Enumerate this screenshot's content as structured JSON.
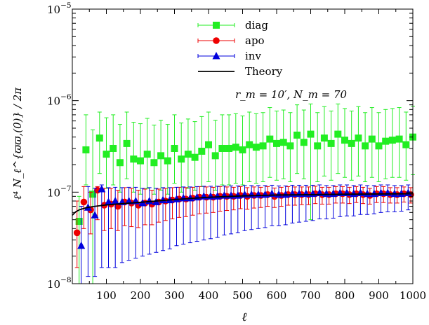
{
  "chart_data": {
    "type": "scatter",
    "title": "",
    "xlabel": "ℓ",
    "ylabel": "ℓ⁴ N_ℓ^{ϖϖ,(0)} / 2π",
    "xlim": [
      0,
      1000
    ],
    "ylim": [
      1e-08,
      1e-05
    ],
    "y_scale": "log",
    "grid": false,
    "legend_position": "top-center",
    "x_ticks": [
      100,
      200,
      300,
      400,
      500,
      600,
      700,
      800,
      900,
      1000
    ],
    "x_tick_labels": [
      "100",
      "200",
      "300",
      "400",
      "500",
      "600",
      "700",
      "800",
      "900",
      "1000"
    ],
    "y_ticks": [
      {
        "value": 1e-08,
        "base": "10",
        "exp": "−8"
      },
      {
        "value": 1e-07,
        "base": "10",
        "exp": "−7"
      },
      {
        "value": 1e-06,
        "base": "10",
        "exp": "−6"
      },
      {
        "value": 1e-05,
        "base": "10",
        "exp": "−5"
      }
    ],
    "annotation": "r_m = 10′, N_m = 70",
    "x": [
      20,
      40,
      60,
      80,
      100,
      120,
      140,
      160,
      180,
      200,
      220,
      240,
      260,
      280,
      300,
      320,
      340,
      360,
      380,
      400,
      420,
      440,
      460,
      480,
      500,
      520,
      540,
      560,
      580,
      600,
      620,
      640,
      660,
      680,
      700,
      720,
      740,
      760,
      780,
      800,
      820,
      840,
      860,
      880,
      900,
      920,
      940,
      960,
      980,
      1000
    ],
    "series": [
      {
        "name": "diag",
        "color": "#22ee22",
        "marker": "square",
        "y": [
          4.8e-08,
          2.9e-07,
          9.5e-08,
          3.9e-07,
          2.6e-07,
          3e-07,
          2.1e-07,
          3.4e-07,
          2.3e-07,
          2.2e-07,
          2.6e-07,
          2.1e-07,
          2.5e-07,
          2.2e-07,
          3e-07,
          2.3e-07,
          2.6e-07,
          2.4e-07,
          2.8e-07,
          3.3e-07,
          2.5e-07,
          3e-07,
          3e-07,
          3.1e-07,
          2.9e-07,
          3.3e-07,
          3.1e-07,
          3.2e-07,
          3.8e-07,
          3.4e-07,
          3.5e-07,
          3.2e-07,
          4.2e-07,
          3.5e-07,
          4.3e-07,
          3.2e-07,
          3.9e-07,
          3.4e-07,
          4.3e-07,
          3.7e-07,
          3.4e-07,
          3.9e-07,
          3.2e-07,
          3.8e-07,
          3.2e-07,
          3.6e-07,
          3.7e-07,
          3.8e-07,
          3.3e-07,
          4e-07
        ],
        "y_lo": [
          1e-08,
          1.2e-07,
          1e-08,
          1.6e-07,
          1.1e-07,
          1.2e-07,
          1e-07,
          1.4e-07,
          1e-07,
          9.5e-08,
          1.1e-07,
          9.5e-08,
          1.05e-07,
          9.5e-08,
          1.25e-07,
          1e-07,
          1.1e-07,
          1.05e-07,
          1.15e-07,
          1.3e-07,
          1.05e-07,
          1.2e-07,
          1.2e-07,
          1.25e-07,
          1.2e-07,
          1.3e-07,
          1.25e-07,
          1.3e-07,
          1.45e-07,
          1.35e-07,
          1.4e-07,
          1.3e-07,
          1.6e-07,
          1.4e-07,
          5e-08,
          1.3e-07,
          1.5e-07,
          1.35e-07,
          1.6e-07,
          1.45e-07,
          1.35e-07,
          1.5e-07,
          1.3e-07,
          1.45e-07,
          1.3e-07,
          1.4e-07,
          1.45e-07,
          1.45e-07,
          1.35e-07,
          1.55e-07
        ],
        "y_hi": [
          9e-08,
          7e-07,
          4.8e-07,
          7.5e-07,
          6.5e-07,
          7e-07,
          5.5e-07,
          7.5e-07,
          5.8e-07,
          5.6e-07,
          6.4e-07,
          5.4e-07,
          6.1e-07,
          5.5e-07,
          7e-07,
          5.7e-07,
          6.3e-07,
          5.9e-07,
          6.7e-07,
          7.5e-07,
          6.1e-07,
          7e-07,
          7e-07,
          7.2e-07,
          6.8e-07,
          7.5e-07,
          7.2e-07,
          7.4e-07,
          8.4e-07,
          7.7e-07,
          7.9e-07,
          7.4e-07,
          9e-07,
          7.9e-07,
          9.2e-07,
          7.4e-07,
          8.6e-07,
          7.7e-07,
          9.2e-07,
          8.2e-07,
          7.7e-07,
          8.6e-07,
          7.4e-07,
          8.4e-07,
          7.4e-07,
          8e-07,
          8.2e-07,
          8.4e-07,
          7.5e-07,
          8.7e-07
        ]
      },
      {
        "name": "apo",
        "color": "#ee0000",
        "marker": "circle",
        "y": [
          3.6e-08,
          7.8e-08,
          6.4e-08,
          1.05e-07,
          7.2e-08,
          7.4e-08,
          7e-08,
          7.8e-08,
          7.6e-08,
          7.2e-08,
          7.6e-08,
          7.4e-08,
          7.8e-08,
          8e-08,
          8.2e-08,
          8.4e-08,
          8.4e-08,
          8.6e-08,
          8.8e-08,
          8.8e-08,
          8.8e-08,
          9e-08,
          9e-08,
          9e-08,
          9.2e-08,
          9e-08,
          9.2e-08,
          9.2e-08,
          9.4e-08,
          9e-08,
          9.2e-08,
          9.4e-08,
          9.4e-08,
          9.4e-08,
          9.4e-08,
          9.6e-08,
          9.4e-08,
          9.4e-08,
          9.6e-08,
          9.6e-08,
          9.4e-08,
          9.6e-08,
          9.4e-08,
          9.2e-08,
          9.6e-08,
          9.6e-08,
          9.4e-08,
          9.4e-08,
          9.6e-08,
          9.4e-08
        ],
        "y_lo": [
          1.5e-08,
          4e-08,
          3.5e-08,
          5e-08,
          3.8e-08,
          4e-08,
          3.8e-08,
          4.3e-08,
          4.2e-08,
          4.1e-08,
          4.4e-08,
          4.4e-08,
          4.7e-08,
          4.9e-08,
          5.1e-08,
          5.3e-08,
          5.4e-08,
          5.6e-08,
          5.8e-08,
          5.9e-08,
          6e-08,
          6.2e-08,
          6.3e-08,
          6.4e-08,
          6.6e-08,
          6.5e-08,
          6.7e-08,
          6.8e-08,
          7e-08,
          6.8e-08,
          7e-08,
          7.2e-08,
          7.2e-08,
          7.3e-08,
          7.3e-08,
          7.5e-08,
          7.4e-08,
          7.4e-08,
          7.6e-08,
          7.6e-08,
          7.5e-08,
          7.7e-08,
          7.5e-08,
          7.4e-08,
          7.7e-08,
          7.7e-08,
          7.6e-08,
          7.6e-08,
          7.8e-08,
          7.6e-08
        ],
        "y_hi": [
          8e-08,
          1.15e-07,
          1e-07,
          1.15e-07,
          1.1e-07,
          1.1e-07,
          1.05e-07,
          1.12e-07,
          1.1e-07,
          1.05e-07,
          1.08e-07,
          1.05e-07,
          1.08e-07,
          1.1e-07,
          1.12e-07,
          1.13e-07,
          1.12e-07,
          1.13e-07,
          1.15e-07,
          1.14e-07,
          1.13e-07,
          1.15e-07,
          1.14e-07,
          1.13e-07,
          1.15e-07,
          1.12e-07,
          1.14e-07,
          1.13e-07,
          1.15e-07,
          1.11e-07,
          1.13e-07,
          1.15e-07,
          1.14e-07,
          1.14e-07,
          1.14e-07,
          1.16e-07,
          1.13e-07,
          1.13e-07,
          1.15e-07,
          1.15e-07,
          1.13e-07,
          1.15e-07,
          1.13e-07,
          1.1e-07,
          1.15e-07,
          1.15e-07,
          1.12e-07,
          1.12e-07,
          1.14e-07,
          1.12e-07
        ]
      },
      {
        "name": "inv",
        "color": "#0000dd",
        "marker": "triangle",
        "y": [
          2.6e-08,
          6.8e-08,
          5.6e-08,
          1.08e-07,
          7.8e-08,
          8e-08,
          7.8e-08,
          8e-08,
          8e-08,
          7.6e-08,
          8e-08,
          7.8e-08,
          8.2e-08,
          8.2e-08,
          8.4e-08,
          8.6e-08,
          8.6e-08,
          8.8e-08,
          9e-08,
          9e-08,
          9e-08,
          9.2e-08,
          9.2e-08,
          9.2e-08,
          9.4e-08,
          9.4e-08,
          9.4e-08,
          9.4e-08,
          9.6e-08,
          9.4e-08,
          9.4e-08,
          9.6e-08,
          9.6e-08,
          9.6e-08,
          9.6e-08,
          9.8e-08,
          9.6e-08,
          9.6e-08,
          9.8e-08,
          9.8e-08,
          9.6e-08,
          9.8e-08,
          9.6e-08,
          9.6e-08,
          9.8e-08,
          9.8e-08,
          9.6e-08,
          9.6e-08,
          9.8e-08,
          9.6e-08
        ],
        "y_lo": [
          1e-08,
          1.2e-08,
          1.2e-08,
          1.5e-08,
          1.5e-08,
          1.5e-08,
          1.7e-08,
          1.8e-08,
          1.9e-08,
          2e-08,
          2.1e-08,
          2.2e-08,
          2.3e-08,
          2.4e-08,
          2.6e-08,
          2.7e-08,
          2.8e-08,
          2.9e-08,
          3e-08,
          3.1e-08,
          3.2e-08,
          3.4e-08,
          3.5e-08,
          3.6e-08,
          3.8e-08,
          3.9e-08,
          4e-08,
          4.1e-08,
          4.3e-08,
          4.3e-08,
          4.4e-08,
          4.6e-08,
          4.7e-08,
          4.8e-08,
          4.9e-08,
          5.1e-08,
          5.1e-08,
          5.2e-08,
          5.4e-08,
          5.5e-08,
          5.5e-08,
          5.7e-08,
          5.7e-08,
          5.8e-08,
          6e-08,
          6.1e-08,
          6.1e-08,
          6.2e-08,
          6.4e-08,
          6.3e-08
        ],
        "y_hi": [
          7e-08,
          1.15e-07,
          1.1e-07,
          1.2e-07,
          1.12e-07,
          1.13e-07,
          1.12e-07,
          1.13e-07,
          1.13e-07,
          1.1e-07,
          1.12e-07,
          1.1e-07,
          1.12e-07,
          1.12e-07,
          1.13e-07,
          1.14e-07,
          1.14e-07,
          1.15e-07,
          1.16e-07,
          1.16e-07,
          1.16e-07,
          1.17e-07,
          1.17e-07,
          1.17e-07,
          1.18e-07,
          1.18e-07,
          1.18e-07,
          1.18e-07,
          1.19e-07,
          1.17e-07,
          1.17e-07,
          1.19e-07,
          1.19e-07,
          1.19e-07,
          1.19e-07,
          1.2e-07,
          1.18e-07,
          1.18e-07,
          1.2e-07,
          1.2e-07,
          1.18e-07,
          1.2e-07,
          1.18e-07,
          1.18e-07,
          1.2e-07,
          1.2e-07,
          1.18e-07,
          1.18e-07,
          1.2e-07,
          1.18e-07
        ]
      }
    ],
    "theory": {
      "name": "Theory",
      "color": "#000000",
      "x": [
        0,
        10,
        20,
        40,
        60,
        80,
        100,
        150,
        200,
        300,
        400,
        500,
        600,
        700,
        800,
        900,
        1000
      ],
      "y": [
        5.6e-08,
        6.1e-08,
        6.4e-08,
        6.75e-08,
        6.95e-08,
        7.1e-08,
        7.25e-08,
        7.5e-08,
        7.75e-08,
        8.3e-08,
        8.8e-08,
        9.1e-08,
        9.3e-08,
        9.4e-08,
        9.5e-08,
        9.55e-08,
        9.6e-08
      ]
    }
  }
}
